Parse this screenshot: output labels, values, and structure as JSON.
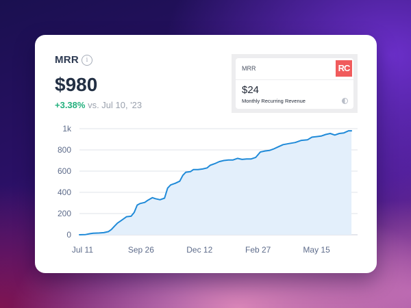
{
  "metric": {
    "title": "MRR",
    "info_icon": "info-icon",
    "value": "$980",
    "change_pct": "+3.38%",
    "change_text": " vs. Jul 10, '23"
  },
  "widget": {
    "label": "MRR",
    "logo_text": "RC",
    "value": "$24",
    "subtitle": "Monthly Recurring Revenue",
    "brand_color": "#f05b5c"
  },
  "colors": {
    "line": "#1f8ad8",
    "area": "#e3effb",
    "positive": "#22b07d"
  },
  "chart_data": {
    "type": "area",
    "title": "",
    "xlabel": "",
    "ylabel": "",
    "ylim": [
      0,
      1000
    ],
    "y_ticks": [
      {
        "value": 0,
        "label": "0"
      },
      {
        "value": 200,
        "label": "200"
      },
      {
        "value": 400,
        "label": "400"
      },
      {
        "value": 600,
        "label": "600"
      },
      {
        "value": 800,
        "label": "800"
      },
      {
        "value": 1000,
        "label": "1k"
      }
    ],
    "x_ticks": [
      {
        "x": 4,
        "label": "Jul 11"
      },
      {
        "x": 81,
        "label": "Sep 26"
      },
      {
        "x": 158,
        "label": "Dec 12"
      },
      {
        "x": 235,
        "label": "Feb 27"
      },
      {
        "x": 312,
        "label": "May 15"
      }
    ],
    "xlim": [
      0,
      366
    ],
    "grid": true,
    "series": [
      {
        "values": [
          [
            0,
            0
          ],
          [
            8,
            2
          ],
          [
            14,
            10
          ],
          [
            18,
            15
          ],
          [
            26,
            17
          ],
          [
            32,
            20
          ],
          [
            38,
            30
          ],
          [
            42,
            50
          ],
          [
            46,
            80
          ],
          [
            50,
            110
          ],
          [
            54,
            130
          ],
          [
            58,
            150
          ],
          [
            62,
            170
          ],
          [
            68,
            175
          ],
          [
            72,
            210
          ],
          [
            76,
            280
          ],
          [
            80,
            295
          ],
          [
            86,
            305
          ],
          [
            90,
            325
          ],
          [
            96,
            350
          ],
          [
            100,
            340
          ],
          [
            106,
            330
          ],
          [
            112,
            345
          ],
          [
            116,
            440
          ],
          [
            120,
            470
          ],
          [
            126,
            485
          ],
          [
            132,
            505
          ],
          [
            136,
            560
          ],
          [
            140,
            590
          ],
          [
            146,
            595
          ],
          [
            150,
            615
          ],
          [
            156,
            615
          ],
          [
            162,
            620
          ],
          [
            168,
            630
          ],
          [
            172,
            655
          ],
          [
            178,
            670
          ],
          [
            184,
            690
          ],
          [
            190,
            700
          ],
          [
            196,
            705
          ],
          [
            202,
            705
          ],
          [
            208,
            720
          ],
          [
            214,
            710
          ],
          [
            220,
            715
          ],
          [
            226,
            715
          ],
          [
            232,
            730
          ],
          [
            238,
            780
          ],
          [
            244,
            790
          ],
          [
            250,
            795
          ],
          [
            256,
            810
          ],
          [
            262,
            830
          ],
          [
            268,
            850
          ],
          [
            276,
            860
          ],
          [
            284,
            870
          ],
          [
            292,
            890
          ],
          [
            300,
            895
          ],
          [
            306,
            920
          ],
          [
            312,
            925
          ],
          [
            318,
            930
          ],
          [
            324,
            945
          ],
          [
            330,
            955
          ],
          [
            336,
            940
          ],
          [
            342,
            955
          ],
          [
            348,
            960
          ],
          [
            354,
            980
          ],
          [
            358,
            980
          ]
        ]
      }
    ]
  }
}
